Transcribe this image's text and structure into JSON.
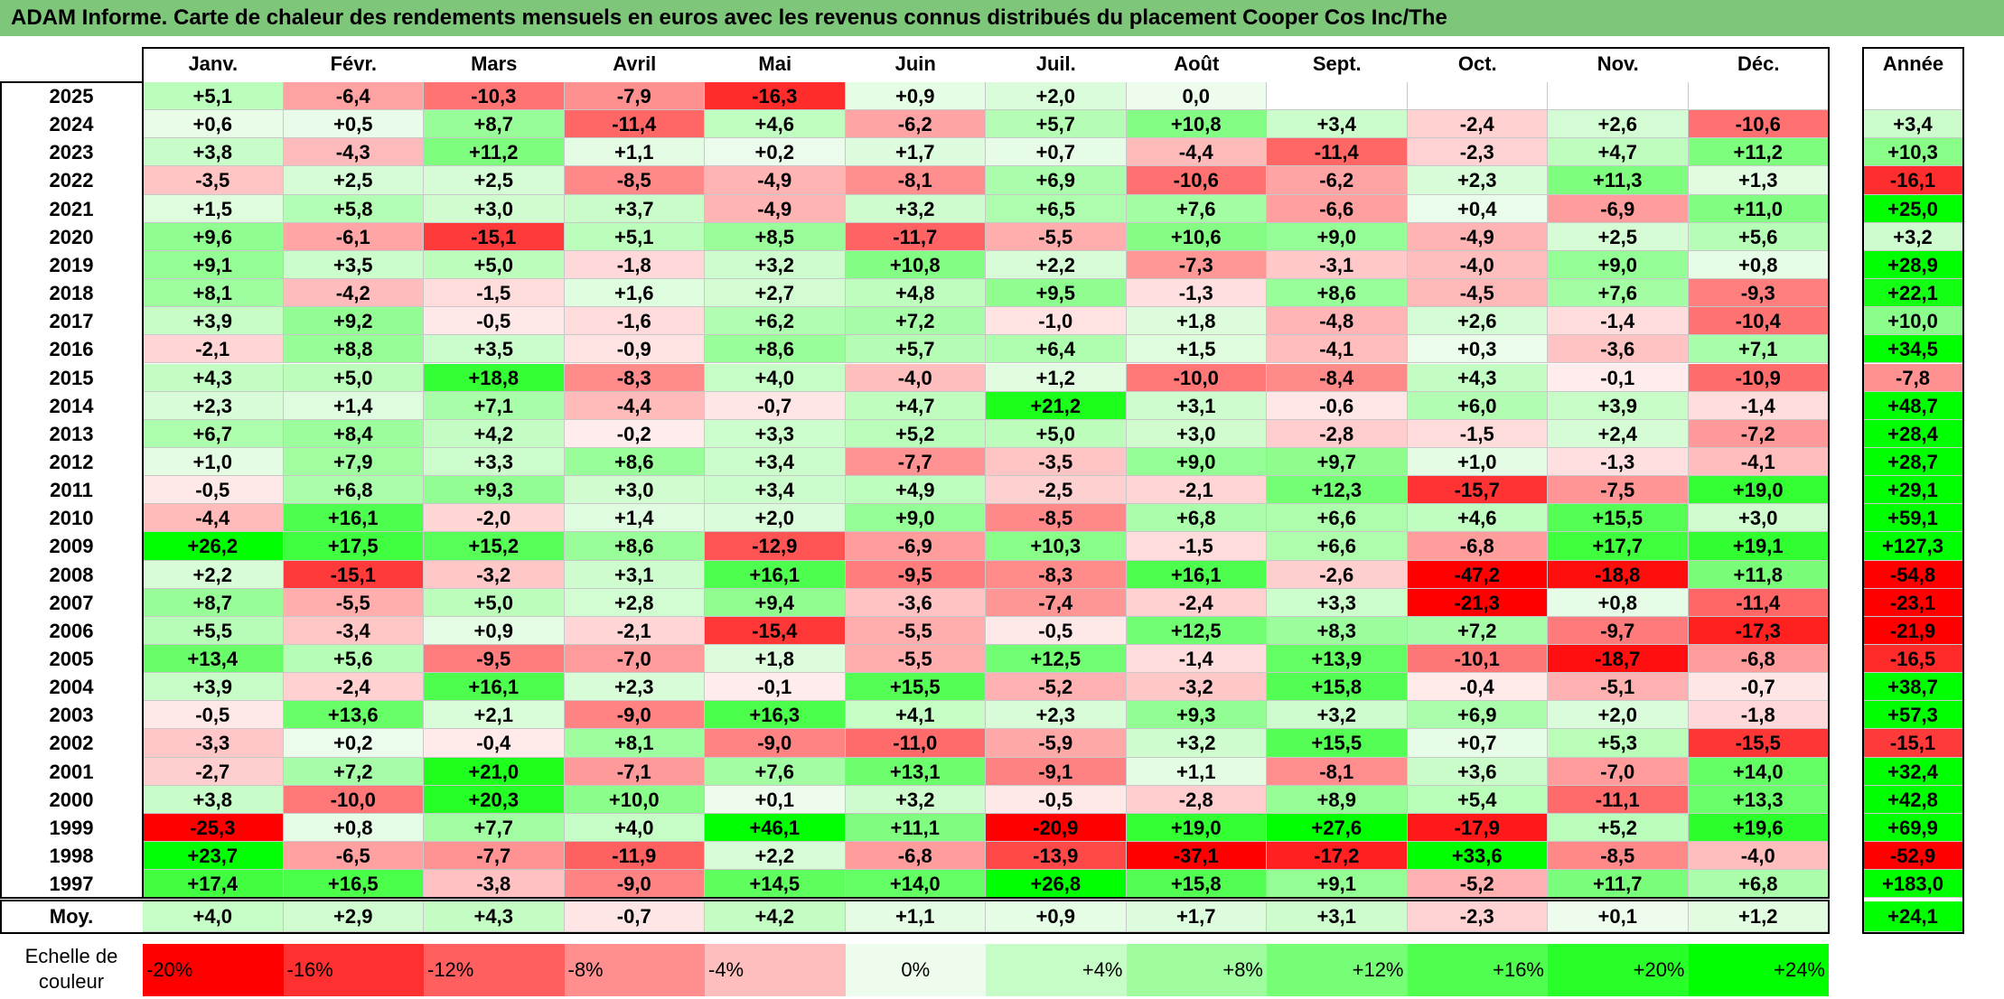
{
  "title": "ADAM Informe. Carte de chaleur des rendements mensuels en euros avec les revenus connus distribués du placement Cooper Cos Inc/The",
  "chart_data": {
    "type": "heatmap",
    "title": "ADAM Informe. Carte de chaleur des rendements mensuels en euros avec les revenus connus distribués du placement Cooper Cos Inc/The",
    "months": [
      "Janv.",
      "Févr.",
      "Mars",
      "Avril",
      "Mai",
      "Juin",
      "Juil.",
      "Août",
      "Sept.",
      "Oct.",
      "Nov.",
      "Déc."
    ],
    "year_header": "Année",
    "rows": [
      {
        "year": "2025",
        "values": [
          "+5,1",
          "-6,4",
          "-10,3",
          "-7,9",
          "-16,3",
          "+0,9",
          "+2,0",
          "0,0",
          "",
          "",
          "",
          ""
        ],
        "annual": ""
      },
      {
        "year": "2024",
        "values": [
          "+0,6",
          "+0,5",
          "+8,7",
          "-11,4",
          "+4,6",
          "-6,2",
          "+5,7",
          "+10,8",
          "+3,4",
          "-2,4",
          "+2,6",
          "-10,6"
        ],
        "annual": "+3,4"
      },
      {
        "year": "2023",
        "values": [
          "+3,8",
          "-4,3",
          "+11,2",
          "+1,1",
          "+0,2",
          "+1,7",
          "+0,7",
          "-4,4",
          "-11,4",
          "-2,3",
          "+4,7",
          "+11,2"
        ],
        "annual": "+10,3"
      },
      {
        "year": "2022",
        "values": [
          "-3,5",
          "+2,5",
          "+2,5",
          "-8,5",
          "-4,9",
          "-8,1",
          "+6,9",
          "-10,6",
          "-6,2",
          "+2,3",
          "+11,3",
          "+1,3"
        ],
        "annual": "-16,1"
      },
      {
        "year": "2021",
        "values": [
          "+1,5",
          "+5,8",
          "+3,0",
          "+3,7",
          "-4,9",
          "+3,2",
          "+6,5",
          "+7,6",
          "-6,6",
          "+0,4",
          "-6,9",
          "+11,0"
        ],
        "annual": "+25,0"
      },
      {
        "year": "2020",
        "values": [
          "+9,6",
          "-6,1",
          "-15,1",
          "+5,1",
          "+8,5",
          "-11,7",
          "-5,5",
          "+10,6",
          "+9,0",
          "-4,9",
          "+2,5",
          "+5,6"
        ],
        "annual": "+3,2"
      },
      {
        "year": "2019",
        "values": [
          "+9,1",
          "+3,5",
          "+5,0",
          "-1,8",
          "+3,2",
          "+10,8",
          "+2,2",
          "-7,3",
          "-3,1",
          "-4,0",
          "+9,0",
          "+0,8"
        ],
        "annual": "+28,9"
      },
      {
        "year": "2018",
        "values": [
          "+8,1",
          "-4,2",
          "-1,5",
          "+1,6",
          "+2,7",
          "+4,8",
          "+9,5",
          "-1,3",
          "+8,6",
          "-4,5",
          "+7,6",
          "-9,3"
        ],
        "annual": "+22,1"
      },
      {
        "year": "2017",
        "values": [
          "+3,9",
          "+9,2",
          "-0,5",
          "-1,6",
          "+6,2",
          "+7,2",
          "-1,0",
          "+1,8",
          "-4,8",
          "+2,6",
          "-1,4",
          "-10,4"
        ],
        "annual": "+10,0"
      },
      {
        "year": "2016",
        "values": [
          "-2,1",
          "+8,8",
          "+3,5",
          "-0,9",
          "+8,6",
          "+5,7",
          "+6,4",
          "+1,5",
          "-4,1",
          "+0,3",
          "-3,6",
          "+7,1"
        ],
        "annual": "+34,5"
      },
      {
        "year": "2015",
        "values": [
          "+4,3",
          "+5,0",
          "+18,8",
          "-8,3",
          "+4,0",
          "-4,0",
          "+1,2",
          "-10,0",
          "-8,4",
          "+4,3",
          "-0,1",
          "-10,9"
        ],
        "annual": "-7,8"
      },
      {
        "year": "2014",
        "values": [
          "+2,3",
          "+1,4",
          "+7,1",
          "-4,4",
          "-0,7",
          "+4,7",
          "+21,2",
          "+3,1",
          "-0,6",
          "+6,0",
          "+3,9",
          "-1,4"
        ],
        "annual": "+48,7"
      },
      {
        "year": "2013",
        "values": [
          "+6,7",
          "+8,4",
          "+4,2",
          "-0,2",
          "+3,3",
          "+5,2",
          "+5,0",
          "+3,0",
          "-2,8",
          "-1,5",
          "+2,4",
          "-7,2"
        ],
        "annual": "+28,4"
      },
      {
        "year": "2012",
        "values": [
          "+1,0",
          "+7,9",
          "+3,3",
          "+8,6",
          "+3,4",
          "-7,7",
          "-3,5",
          "+9,0",
          "+9,7",
          "+1,0",
          "-1,3",
          "-4,1"
        ],
        "annual": "+28,7"
      },
      {
        "year": "2011",
        "values": [
          "-0,5",
          "+6,8",
          "+9,3",
          "+3,0",
          "+3,4",
          "+4,9",
          "-2,5",
          "-2,1",
          "+12,3",
          "-15,7",
          "-7,5",
          "+19,0"
        ],
        "annual": "+29,1"
      },
      {
        "year": "2010",
        "values": [
          "-4,4",
          "+16,1",
          "-2,0",
          "+1,4",
          "+2,0",
          "+9,0",
          "-8,5",
          "+6,8",
          "+6,6",
          "+4,6",
          "+15,5",
          "+3,0"
        ],
        "annual": "+59,1"
      },
      {
        "year": "2009",
        "values": [
          "+26,2",
          "+17,5",
          "+15,2",
          "+8,6",
          "-12,9",
          "-6,9",
          "+10,3",
          "-1,5",
          "+6,6",
          "-6,8",
          "+17,7",
          "+19,1"
        ],
        "annual": "+127,3"
      },
      {
        "year": "2008",
        "values": [
          "+2,2",
          "-15,1",
          "-3,2",
          "+3,1",
          "+16,1",
          "-9,5",
          "-8,3",
          "+16,1",
          "-2,6",
          "-47,2",
          "-18,8",
          "+11,8"
        ],
        "annual": "-54,8"
      },
      {
        "year": "2007",
        "values": [
          "+8,7",
          "-5,5",
          "+5,0",
          "+2,8",
          "+9,4",
          "-3,6",
          "-7,4",
          "-2,4",
          "+3,3",
          "-21,3",
          "+0,8",
          "-11,4"
        ],
        "annual": "-23,1"
      },
      {
        "year": "2006",
        "values": [
          "+5,5",
          "-3,4",
          "+0,9",
          "-2,1",
          "-15,4",
          "-5,5",
          "-0,5",
          "+12,5",
          "+8,3",
          "+7,2",
          "-9,7",
          "-17,3"
        ],
        "annual": "-21,9"
      },
      {
        "year": "2005",
        "values": [
          "+13,4",
          "+5,6",
          "-9,5",
          "-7,0",
          "+1,8",
          "-5,5",
          "+12,5",
          "-1,4",
          "+13,9",
          "-10,1",
          "-18,7",
          "-6,8"
        ],
        "annual": "-16,5"
      },
      {
        "year": "2004",
        "values": [
          "+3,9",
          "-2,4",
          "+16,1",
          "+2,3",
          "-0,1",
          "+15,5",
          "-5,2",
          "-3,2",
          "+15,8",
          "-0,4",
          "-5,1",
          "-0,7"
        ],
        "annual": "+38,7"
      },
      {
        "year": "2003",
        "values": [
          "-0,5",
          "+13,6",
          "+2,1",
          "-9,0",
          "+16,3",
          "+4,1",
          "+2,3",
          "+9,3",
          "+3,2",
          "+6,9",
          "+2,0",
          "-1,8"
        ],
        "annual": "+57,3"
      },
      {
        "year": "2002",
        "values": [
          "-3,3",
          "+0,2",
          "-0,4",
          "+8,1",
          "-9,0",
          "-11,0",
          "-5,9",
          "+3,2",
          "+15,5",
          "+0,7",
          "+5,3",
          "-15,5"
        ],
        "annual": "-15,1"
      },
      {
        "year": "2001",
        "values": [
          "-2,7",
          "+7,2",
          "+21,0",
          "-7,1",
          "+7,6",
          "+13,1",
          "-9,1",
          "+1,1",
          "-8,1",
          "+3,6",
          "-7,0",
          "+14,0"
        ],
        "annual": "+32,4"
      },
      {
        "year": "2000",
        "values": [
          "+3,8",
          "-10,0",
          "+20,3",
          "+10,0",
          "+0,1",
          "+3,2",
          "-0,5",
          "-2,8",
          "+8,9",
          "+5,4",
          "-11,1",
          "+13,3"
        ],
        "annual": "+42,8"
      },
      {
        "year": "1999",
        "values": [
          "-25,3",
          "+0,8",
          "+7,7",
          "+4,0",
          "+46,1",
          "+11,1",
          "-20,9",
          "+19,0",
          "+27,6",
          "-17,9",
          "+5,2",
          "+19,6"
        ],
        "annual": "+69,9"
      },
      {
        "year": "1998",
        "values": [
          "+23,7",
          "-6,5",
          "-7,7",
          "-11,9",
          "+2,2",
          "-6,8",
          "-13,9",
          "-37,1",
          "-17,2",
          "+33,6",
          "-8,5",
          "-4,0"
        ],
        "annual": "-52,9"
      },
      {
        "year": "1997",
        "values": [
          "+17,4",
          "+16,5",
          "-3,8",
          "-9,0",
          "+14,5",
          "+14,0",
          "+26,8",
          "+15,8",
          "+9,1",
          "-5,2",
          "+11,7",
          "+6,8"
        ],
        "annual": "+183,0"
      }
    ],
    "average": {
      "label": "Moy.",
      "values": [
        "+4,0",
        "+2,9",
        "+4,3",
        "-0,7",
        "+4,2",
        "+1,1",
        "+0,9",
        "+1,7",
        "+3,1",
        "-2,3",
        "+0,1",
        "+1,2"
      ],
      "annual": "+24,1"
    },
    "scale": {
      "label": "Echelle de couleur",
      "stops": [
        "-20%",
        "-16%",
        "-12%",
        "-8%",
        "-4%",
        "0%",
        "+4%",
        "+8%",
        "+12%",
        "+16%",
        "+20%",
        "+24%"
      ]
    },
    "colors": {
      "title_bg": "#7dc67a",
      "neg_max": "#ff0000",
      "neutral": "#ffffff",
      "pos_max": "#00ff00"
    }
  }
}
